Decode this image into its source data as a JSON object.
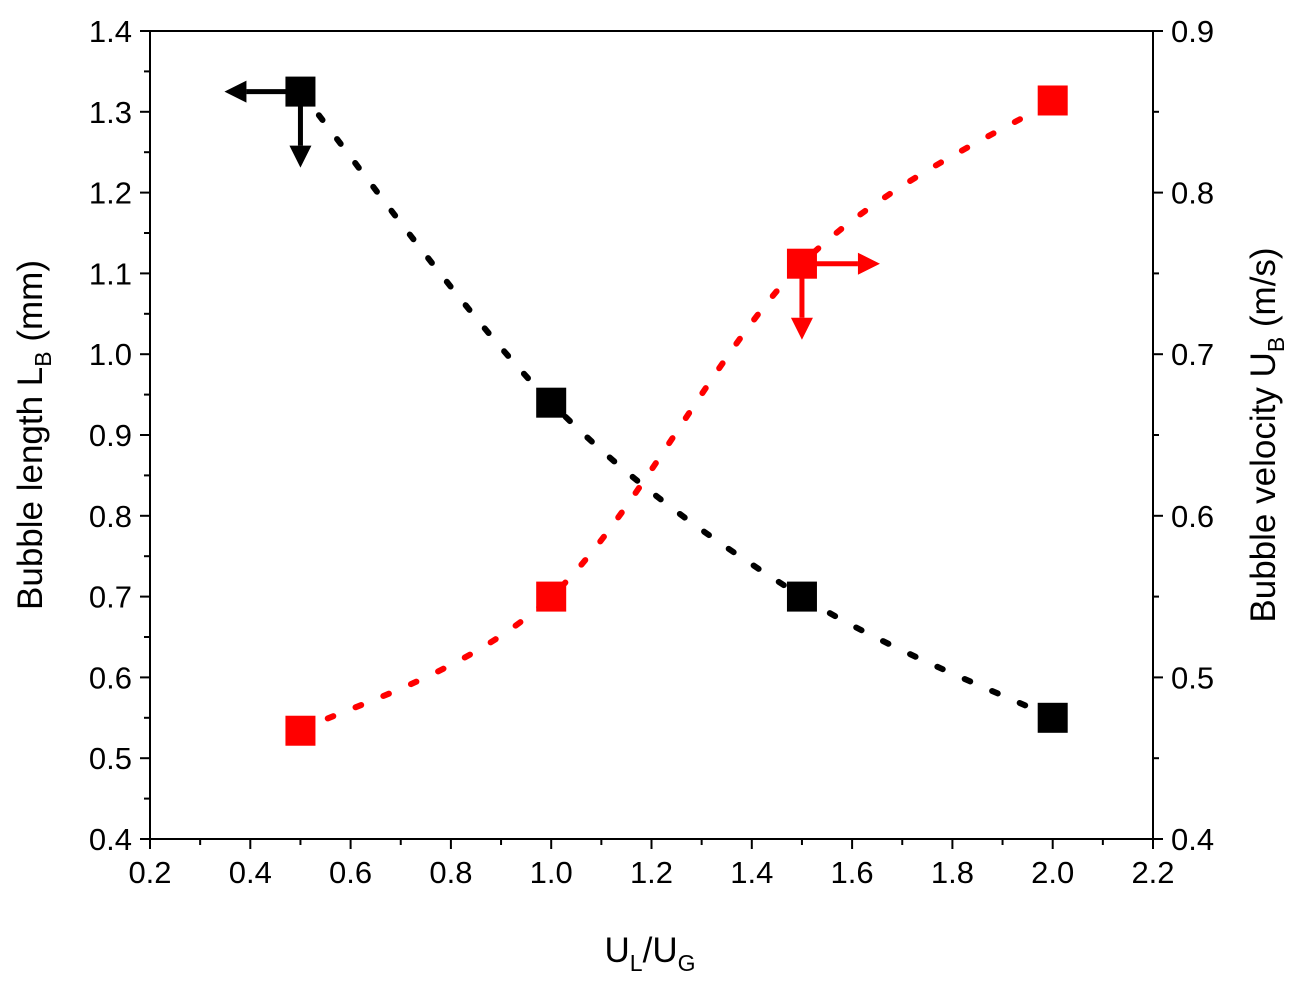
{
  "chart_data": {
    "type": "scatter",
    "x_axis": {
      "label_main": "U",
      "label_sub1": "L",
      "label_mid": "/U",
      "label_sub2": "G",
      "range": [
        0.2,
        2.2
      ],
      "major_ticks": [
        0.2,
        0.4,
        0.6,
        0.8,
        1.0,
        1.2,
        1.4,
        1.6,
        1.8,
        2.0,
        2.2
      ],
      "tick_labels": [
        "0.2",
        "0.4",
        "0.6",
        "0.8",
        "1.0",
        "1.2",
        "1.4",
        "1.6",
        "1.8",
        "2.0",
        "2.2"
      ]
    },
    "y_left_axis": {
      "label_main": "Bubble length L",
      "label_sub": "B",
      "label_unit": " (mm)",
      "range": [
        0.4,
        1.4
      ],
      "major_ticks": [
        0.4,
        0.5,
        0.6,
        0.7,
        0.8,
        0.9,
        1.0,
        1.1,
        1.2,
        1.3,
        1.4
      ],
      "tick_labels": [
        "0.4",
        "0.5",
        "0.6",
        "0.7",
        "0.8",
        "0.9",
        "1.0",
        "1.1",
        "1.2",
        "1.3",
        "1.4"
      ]
    },
    "y_right_axis": {
      "label_main": "Bubble velocity U",
      "label_sub": "B",
      "label_unit": " (m/s)",
      "range": [
        0.4,
        0.9
      ],
      "major_ticks": [
        0.4,
        0.5,
        0.6,
        0.7,
        0.8,
        0.9
      ],
      "tick_labels": [
        "0.4",
        "0.5",
        "0.6",
        "0.7",
        "0.8",
        "0.9"
      ]
    },
    "grid": false,
    "series": [
      {
        "axis": "left",
        "color": "#000000",
        "marker": "square",
        "line_style": "dotted",
        "arrow": "left",
        "x": [
          0.5,
          1.0,
          1.5,
          2.0
        ],
        "y": [
          1.325,
          0.94,
          0.7,
          0.55
        ]
      },
      {
        "axis": "right",
        "color": "#ff0000",
        "marker": "square",
        "line_style": "dotted",
        "arrow": "right",
        "x": [
          0.5,
          1.0,
          1.5,
          2.0
        ],
        "y": [
          0.467,
          0.55,
          0.756,
          0.857
        ]
      }
    ]
  }
}
